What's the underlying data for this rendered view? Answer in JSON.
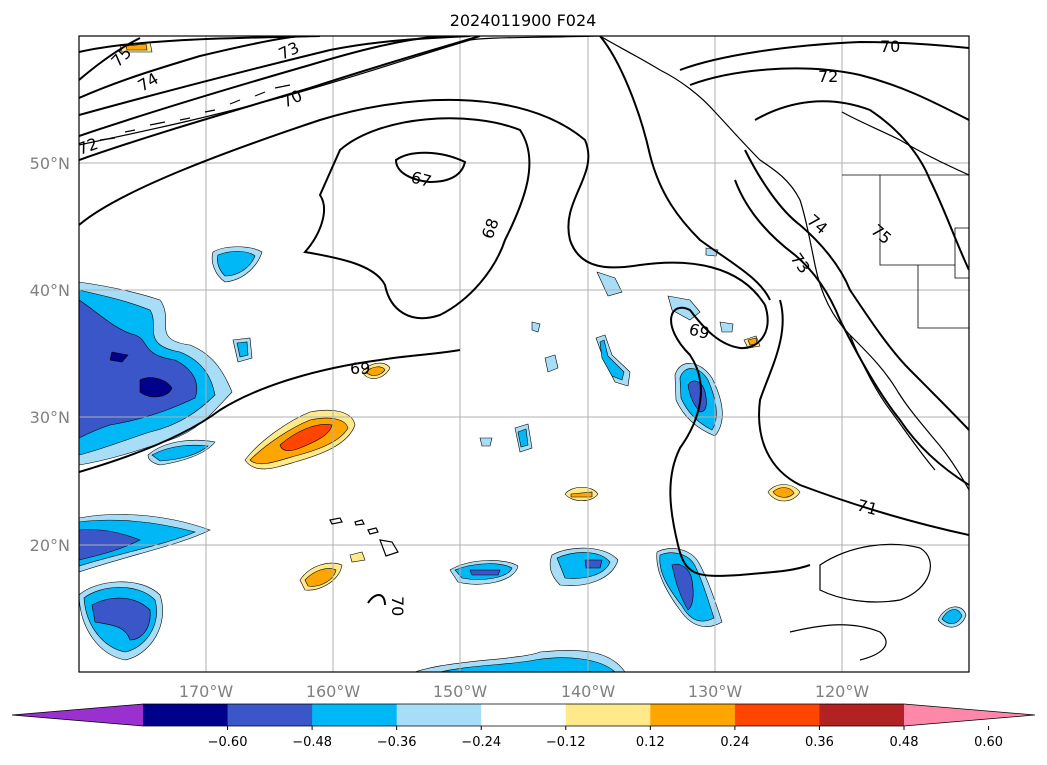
{
  "title": "2024011900 F024",
  "lat_labels": [
    "50°N",
    "40°N",
    "30°N",
    "20°N"
  ],
  "lon_labels": [
    "170°W",
    "160°W",
    "150°W",
    "140°W",
    "130°W",
    "120°W"
  ],
  "colorbar": {
    "ticks": [
      "−0.60",
      "−0.48",
      "−0.36",
      "−0.24",
      "−0.12",
      "0.12",
      "0.24",
      "0.36",
      "0.48",
      "0.60"
    ],
    "colors": [
      "#9b30d0",
      "#00008b",
      "#3a56c8",
      "#00b8f5",
      "#a8ddf7",
      "#ffffff",
      "#ffe98a",
      "#ffa500",
      "#ff4500",
      "#b22222",
      "#ff88aa"
    ]
  },
  "contour_labels": [
    "75",
    "74",
    "73",
    "72",
    "70",
    "67",
    "68",
    "69",
    "70",
    "72",
    "70",
    "74",
    "75",
    "73",
    "69",
    "71"
  ]
}
